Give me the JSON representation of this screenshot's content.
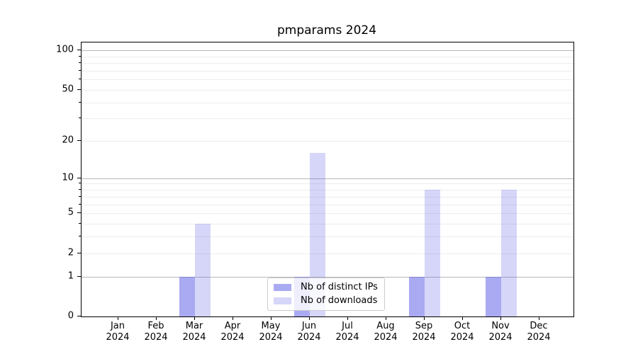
{
  "title": "pmparams 2024",
  "colors": {
    "background": "#ffffff",
    "bar_base": "#5555e5",
    "bar_distinct_ips": "rgba(85,85,229,0.5)",
    "bar_downloads": "rgba(85,85,229,0.24)",
    "grid_major": "#b8b8b8",
    "grid_minor": "#ededed",
    "axis": "#000000",
    "text": "#000000",
    "legend_border": "#cccccc"
  },
  "chart_data": {
    "type": "bar",
    "title": "pmparams 2024",
    "categories": [
      "Jan",
      "Feb",
      "Mar",
      "Apr",
      "May",
      "Jun",
      "Jul",
      "Aug",
      "Sep",
      "Oct",
      "Nov",
      "Dec"
    ],
    "category_year": "2024",
    "series": [
      {
        "name": "Nb of distinct IPs",
        "color": "rgba(85,85,229,0.5)",
        "values": [
          0,
          0,
          1,
          0,
          0,
          1,
          0,
          0,
          1,
          0,
          1,
          0
        ]
      },
      {
        "name": "Nb of downloads",
        "color": "rgba(85,85,229,0.24)",
        "values": [
          0,
          0,
          4,
          0,
          0,
          16,
          0,
          0,
          8,
          0,
          8,
          0
        ]
      }
    ],
    "yscale": "log1p",
    "ylim": [
      0,
      114.7
    ],
    "y_ticks": [
      0,
      1,
      2,
      5,
      10,
      20,
      50,
      100
    ],
    "y_decade_gridlines": [
      1,
      10,
      100
    ],
    "y_minor_gridlines": [
      2,
      3,
      4,
      5,
      6,
      7,
      8,
      9,
      20,
      30,
      40,
      50,
      60,
      70,
      80,
      90
    ],
    "grid": true,
    "legend_position": "lower center"
  }
}
